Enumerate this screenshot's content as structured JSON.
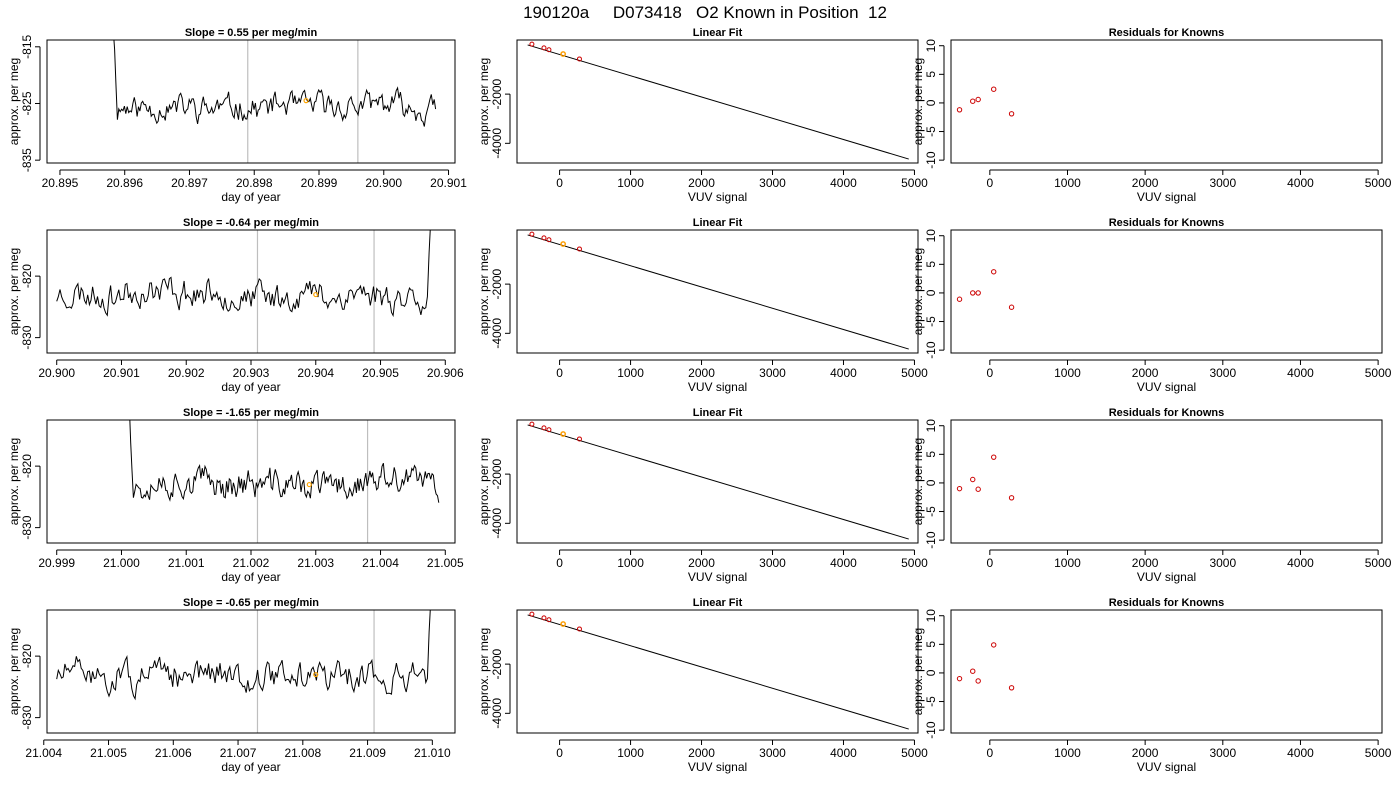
{
  "figure_title": "190120a     D073418   O2 Known in Position  12",
  "colors": {
    "trace": "#000000",
    "known_marker": "#ffa500",
    "residual_marker": "#cc0000",
    "vline": "#bebebe",
    "frame": "#000000"
  },
  "chart_data": [
    {
      "type": "line",
      "panel": "trace",
      "row": 1,
      "title": "Slope =  0.55  per meg/min",
      "xlabel": "day of year",
      "ylabel": "approx. per meg",
      "xlim": [
        20.8948,
        20.9011
      ],
      "ylim": [
        -835.5,
        -813.8
      ],
      "xticks": [
        20.895,
        20.896,
        20.897,
        20.898,
        20.899,
        20.9,
        20.901
      ],
      "xtick_labels": [
        "20.895",
        "20.896",
        "20.897",
        "20.898",
        "20.899",
        "20.900",
        "20.901"
      ],
      "yticks": [
        -835,
        -825,
        -815
      ],
      "ytick_labels": [
        "-835",
        "-825",
        "-815"
      ],
      "vlines": [
        20.8979,
        20.8996
      ],
      "trace_start": 20.8958,
      "trace_end": 20.9008,
      "trace_base": -825.5,
      "trace_amp": 1.8,
      "seed": 11,
      "known_point": {
        "x": 20.8988,
        "y": -824.5
      }
    },
    {
      "type": "scatter",
      "panel": "fit",
      "row": 1,
      "title": "Linear Fit",
      "xlabel": "VUV signal",
      "ylabel": "approx. per meg",
      "xlim": [
        -600,
        5050
      ],
      "ylim": [
        -4800,
        200
      ],
      "xticks": [
        0,
        1000,
        2000,
        3000,
        4000,
        5000
      ],
      "xtick_labels": [
        "0",
        "1000",
        "2000",
        "3000",
        "4000",
        "5000"
      ],
      "yticks": [
        -4000,
        -2000
      ],
      "ytick_labels": [
        "-4000",
        "-2000"
      ],
      "line": [
        [
          -450,
          0
        ],
        [
          4920,
          -4640
        ]
      ],
      "points": [
        [
          -390,
          30
        ],
        [
          -220,
          -120
        ],
        [
          -150,
          -195
        ],
        [
          50,
          -370
        ],
        [
          280,
          -570
        ]
      ],
      "known_point": [
        50,
        -370
      ]
    },
    {
      "type": "scatter",
      "panel": "resid",
      "row": 1,
      "title": "Residuals for Knowns",
      "xlabel": "VUV signal",
      "ylabel": "approx. per meg",
      "xlim": [
        -500,
        5050
      ],
      "ylim": [
        -10.5,
        11
      ],
      "xticks": [
        0,
        1000,
        2000,
        3000,
        4000,
        5000
      ],
      "xtick_labels": [
        "0",
        "1000",
        "2000",
        "3000",
        "4000",
        "5000"
      ],
      "yticks": [
        -10,
        -5,
        0,
        5,
        10
      ],
      "ytick_labels": [
        "-10",
        "-5",
        "0",
        "5",
        "10"
      ],
      "points": [
        [
          -390,
          -1.2
        ],
        [
          -220,
          0.3
        ],
        [
          -150,
          0.6
        ],
        [
          50,
          2.4
        ],
        [
          280,
          -1.9
        ]
      ]
    },
    {
      "type": "line",
      "panel": "trace",
      "row": 2,
      "title": "Slope =  -0.64  per meg/min",
      "xlabel": "day of year",
      "ylabel": "approx. per meg",
      "xlim": [
        20.89985,
        20.90615
      ],
      "ylim": [
        -832.5,
        -812.5
      ],
      "xticks": [
        20.9,
        20.901,
        20.902,
        20.903,
        20.904,
        20.905,
        20.906
      ],
      "xtick_labels": [
        "20.900",
        "20.901",
        "20.902",
        "20.903",
        "20.904",
        "20.905",
        "20.906"
      ],
      "yticks": [
        -830,
        -820
      ],
      "ytick_labels": [
        "-830",
        "-820"
      ],
      "vlines": [
        20.9031,
        20.9049
      ],
      "trace_start": 20.9,
      "trace_end": 20.9058,
      "trace_base": -823,
      "trace_amp": 2.0,
      "seed": 23,
      "known_point": {
        "x": 20.904,
        "y": -823
      }
    },
    {
      "type": "scatter",
      "panel": "fit",
      "row": 2,
      "title": "Linear Fit",
      "xlabel": "VUV signal",
      "ylabel": "approx. per meg",
      "xlim": [
        -600,
        5050
      ],
      "ylim": [
        -4800,
        200
      ],
      "xticks": [
        0,
        1000,
        2000,
        3000,
        4000,
        5000
      ],
      "xtick_labels": [
        "0",
        "1000",
        "2000",
        "3000",
        "4000",
        "5000"
      ],
      "yticks": [
        -4000,
        -2000
      ],
      "ytick_labels": [
        "-4000",
        "-2000"
      ],
      "line": [
        [
          -450,
          0
        ],
        [
          4920,
          -4640
        ]
      ],
      "points": [
        [
          -390,
          30
        ],
        [
          -220,
          -120
        ],
        [
          -150,
          -195
        ],
        [
          50,
          -370
        ],
        [
          280,
          -570
        ]
      ],
      "known_point": [
        50,
        -370
      ]
    },
    {
      "type": "scatter",
      "panel": "resid",
      "row": 2,
      "title": "Residuals for Knowns",
      "xlabel": "VUV signal",
      "ylabel": "approx. per meg",
      "xlim": [
        -500,
        5050
      ],
      "ylim": [
        -10.5,
        11
      ],
      "xticks": [
        0,
        1000,
        2000,
        3000,
        4000,
        5000
      ],
      "xtick_labels": [
        "0",
        "1000",
        "2000",
        "3000",
        "4000",
        "5000"
      ],
      "yticks": [
        -10,
        -5,
        0,
        5,
        10
      ],
      "ytick_labels": [
        "-10",
        "-5",
        "0",
        "5",
        "10"
      ],
      "points": [
        [
          -390,
          -1.1
        ],
        [
          -220,
          0.0
        ],
        [
          -150,
          0.0
        ],
        [
          50,
          3.7
        ],
        [
          280,
          -2.5
        ]
      ]
    },
    {
      "type": "line",
      "panel": "trace",
      "row": 3,
      "title": "Slope =  -1.65  per meg/min",
      "xlabel": "day of year",
      "ylabel": "approx. per meg",
      "xlim": [
        20.99885,
        21.00515
      ],
      "ylim": [
        -832.5,
        -812.5
      ],
      "xticks": [
        20.999,
        21.0,
        21.001,
        21.002,
        21.003,
        21.004,
        21.005
      ],
      "xtick_labels": [
        "20.999",
        "21.000",
        "21.001",
        "21.002",
        "21.003",
        "21.004",
        "21.005"
      ],
      "yticks": [
        -830,
        -820
      ],
      "ytick_labels": [
        "-830",
        "-820"
      ],
      "vlines": [
        21.0021,
        21.0038
      ],
      "trace_start": 21.0001,
      "trace_end": 21.0049,
      "trace_base": -823,
      "trace_amp": 2.0,
      "seed": 37,
      "known_point": {
        "x": 21.0029,
        "y": -823
      }
    },
    {
      "type": "scatter",
      "panel": "fit",
      "row": 3,
      "title": "Linear Fit",
      "xlabel": "VUV signal",
      "ylabel": "approx. per meg",
      "xlim": [
        -600,
        5050
      ],
      "ylim": [
        -4800,
        200
      ],
      "xticks": [
        0,
        1000,
        2000,
        3000,
        4000,
        5000
      ],
      "xtick_labels": [
        "0",
        "1000",
        "2000",
        "3000",
        "4000",
        "5000"
      ],
      "yticks": [
        -4000,
        -2000
      ],
      "ytick_labels": [
        "-4000",
        "-2000"
      ],
      "line": [
        [
          -450,
          0
        ],
        [
          4920,
          -4640
        ]
      ],
      "points": [
        [
          -390,
          30
        ],
        [
          -220,
          -120
        ],
        [
          -150,
          -195
        ],
        [
          50,
          -370
        ],
        [
          280,
          -570
        ]
      ],
      "known_point": [
        50,
        -370
      ]
    },
    {
      "type": "scatter",
      "panel": "resid",
      "row": 3,
      "title": "Residuals for Knowns",
      "xlabel": "VUV signal",
      "ylabel": "approx. per meg",
      "xlim": [
        -500,
        5050
      ],
      "ylim": [
        -10.5,
        11
      ],
      "xticks": [
        0,
        1000,
        2000,
        3000,
        4000,
        5000
      ],
      "xtick_labels": [
        "0",
        "1000",
        "2000",
        "3000",
        "4000",
        "5000"
      ],
      "yticks": [
        -10,
        -5,
        0,
        5,
        10
      ],
      "ytick_labels": [
        "-10",
        "-5",
        "0",
        "5",
        "10"
      ],
      "points": [
        [
          -390,
          -1.0
        ],
        [
          -220,
          0.6
        ],
        [
          -150,
          -1.1
        ],
        [
          50,
          4.5
        ],
        [
          280,
          -2.6
        ]
      ]
    },
    {
      "type": "line",
      "panel": "trace",
      "row": 4,
      "title": "Slope =  -0.65  per meg/min",
      "xlabel": "day of year",
      "ylabel": "approx. per meg",
      "xlim": [
        21.00405,
        21.01035
      ],
      "ylim": [
        -832.5,
        -812.5
      ],
      "xticks": [
        21.004,
        21.005,
        21.006,
        21.007,
        21.008,
        21.009,
        21.01
      ],
      "xtick_labels": [
        "21.004",
        "21.005",
        "21.006",
        "21.007",
        "21.008",
        "21.009",
        "21.010"
      ],
      "yticks": [
        -830,
        -820
      ],
      "ytick_labels": [
        "-830",
        "-820"
      ],
      "vlines": [
        21.0073,
        21.0091
      ],
      "trace_start": 21.0042,
      "trace_end": 21.01,
      "trace_base": -823,
      "trace_amp": 2.0,
      "seed": 51,
      "known_point": {
        "x": 21.0082,
        "y": -823
      }
    },
    {
      "type": "scatter",
      "panel": "fit",
      "row": 4,
      "title": "Linear Fit",
      "xlabel": "VUV signal",
      "ylabel": "approx. per meg",
      "xlim": [
        -600,
        5050
      ],
      "ylim": [
        -4800,
        200
      ],
      "xticks": [
        0,
        1000,
        2000,
        3000,
        4000,
        5000
      ],
      "xtick_labels": [
        "0",
        "1000",
        "2000",
        "3000",
        "4000",
        "5000"
      ],
      "yticks": [
        -4000,
        -2000
      ],
      "ytick_labels": [
        "-4000",
        "-2000"
      ],
      "line": [
        [
          -450,
          0
        ],
        [
          4920,
          -4640
        ]
      ],
      "points": [
        [
          -390,
          30
        ],
        [
          -220,
          -120
        ],
        [
          -150,
          -195
        ],
        [
          50,
          -370
        ],
        [
          280,
          -570
        ]
      ],
      "known_point": [
        50,
        -370
      ]
    },
    {
      "type": "scatter",
      "panel": "resid",
      "row": 4,
      "title": "Residuals for Knowns",
      "xlabel": "VUV signal",
      "ylabel": "approx. per meg",
      "xlim": [
        -500,
        5050
      ],
      "ylim": [
        -10.5,
        11
      ],
      "xticks": [
        0,
        1000,
        2000,
        3000,
        4000,
        5000
      ],
      "xtick_labels": [
        "0",
        "1000",
        "2000",
        "3000",
        "4000",
        "5000"
      ],
      "yticks": [
        -10,
        -5,
        0,
        5,
        10
      ],
      "ytick_labels": [
        "-10",
        "-5",
        "0",
        "5",
        "10"
      ],
      "points": [
        [
          -390,
          -1.0
        ],
        [
          -220,
          0.3
        ],
        [
          -150,
          -1.4
        ],
        [
          50,
          4.9
        ],
        [
          280,
          -2.6
        ]
      ]
    }
  ]
}
